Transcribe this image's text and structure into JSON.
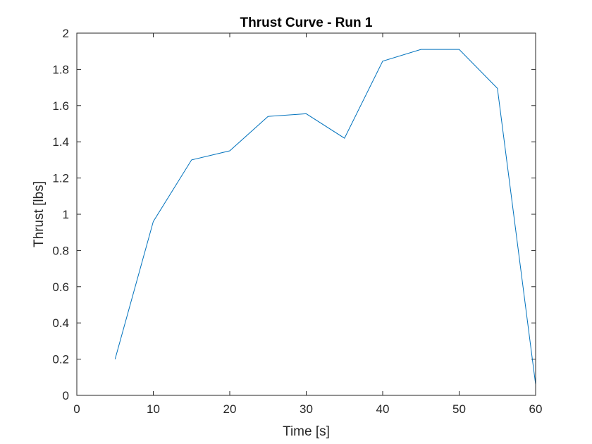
{
  "chart_data": {
    "type": "line",
    "title": "Thrust Curve - Run 1",
    "xlabel": "Time [s]",
    "ylabel": "Thrust [lbs]",
    "xlim": [
      0,
      60
    ],
    "ylim": [
      0,
      2
    ],
    "grid": false,
    "x_ticks": [
      0,
      10,
      20,
      30,
      40,
      50,
      60
    ],
    "x_tick_labels": [
      "0",
      "10",
      "20",
      "30",
      "40",
      "50",
      "60"
    ],
    "y_ticks": [
      0,
      0.2,
      0.4,
      0.6,
      0.8,
      1,
      1.2,
      1.4,
      1.6,
      1.8,
      2
    ],
    "y_tick_labels": [
      "0",
      "0.2",
      "0.4",
      "0.6",
      "0.8",
      "1",
      "1.2",
      "1.4",
      "1.6",
      "1.8",
      "2"
    ],
    "series": [
      {
        "color": "#0072bd",
        "x": [
          5,
          10,
          15,
          20,
          25,
          30,
          35,
          40,
          45,
          50,
          55,
          60
        ],
        "y": [
          0.2,
          0.96,
          1.3,
          1.35,
          1.54,
          1.555,
          1.42,
          1.845,
          1.91,
          1.91,
          1.695,
          0.06
        ]
      }
    ]
  }
}
